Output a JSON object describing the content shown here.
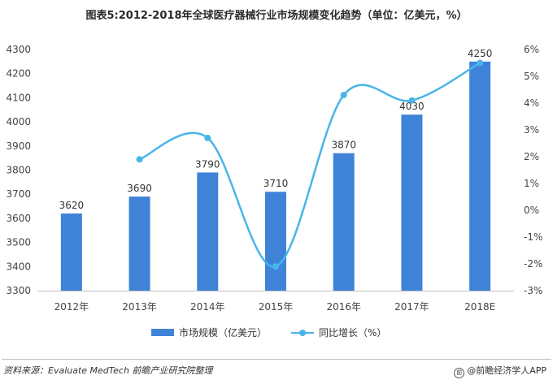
{
  "title": "图表5:2012-2018年全球医疗器械行业市场规模变化趋势（单位：亿美元，%）",
  "chart_data": {
    "type": "bar",
    "categories": [
      "2012年",
      "2013年",
      "2014年",
      "2015年",
      "2016年",
      "2017年",
      "2018E"
    ],
    "series": [
      {
        "name": "市场规模（亿美元）",
        "type": "bar",
        "axis": "left",
        "color": "#3f83d8",
        "values": [
          3620,
          3690,
          3790,
          3710,
          3870,
          4030,
          4250
        ],
        "labels": [
          "3620",
          "3690",
          "3790",
          "3710",
          "3870",
          "4030",
          "4250"
        ]
      },
      {
        "name": "同比增长（%）",
        "type": "line",
        "axis": "right",
        "color": "#48b5ea",
        "values": [
          null,
          1.9,
          2.7,
          -2.1,
          4.3,
          4.1,
          5.5
        ]
      }
    ],
    "left_axis": {
      "ylim": [
        3300,
        4300
      ],
      "ticks": [
        3300,
        3400,
        3500,
        3600,
        3700,
        3800,
        3900,
        4000,
        4100,
        4200,
        4300
      ],
      "tick_labels": [
        "3300",
        "3400",
        "3500",
        "3600",
        "3700",
        "3800",
        "3900",
        "4000",
        "4100",
        "4200",
        "4300"
      ]
    },
    "right_axis": {
      "ylim": [
        -3,
        6
      ],
      "ticks": [
        -3,
        -2,
        -1,
        0,
        1,
        2,
        3,
        4,
        5,
        6
      ],
      "tick_labels": [
        "-3%",
        "-2%",
        "-1%",
        "0%",
        "1%",
        "2%",
        "3%",
        "4%",
        "5%",
        "6%"
      ]
    },
    "xlabel": "",
    "ylabel": "",
    "grid": false,
    "legend": "bottom-center"
  },
  "legend": {
    "bar_label": "市场规模（亿美元）",
    "line_label": "同比增长（%）"
  },
  "footer": {
    "source": "资料来源：Evaluate MedTech 前瞻产业研究院整理",
    "brand": "@前瞻经济学人APP",
    "logo": "前"
  }
}
